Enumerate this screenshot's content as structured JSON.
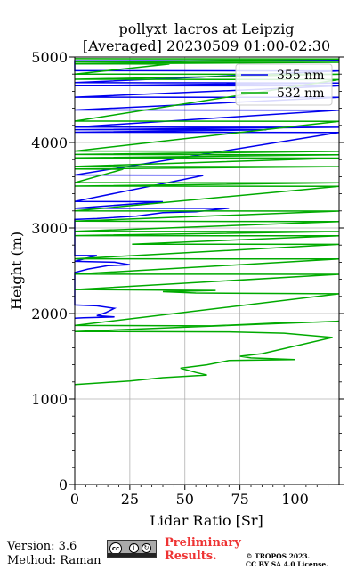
{
  "chart_data": {
    "type": "line",
    "title": "pollyxt_lacros at Leipzig",
    "subtitle": "[Averaged] 20230509 01:00-02:30",
    "xlabel": "Lidar Ratio [Sr]",
    "ylabel": "Height (m)",
    "xlim": [
      0,
      120
    ],
    "ylim": [
      0,
      5000
    ],
    "x_ticks": [
      0,
      25,
      50,
      75,
      100
    ],
    "y_ticks": [
      0,
      1000,
      2000,
      3000,
      4000,
      5000
    ],
    "grid": true,
    "legend_position": "top-right",
    "series": [
      {
        "name": "355 nm",
        "color": "#0000ee",
        "points": [
          [
            120,
            4960
          ],
          [
            0,
            4955
          ],
          [
            0,
            4840
          ],
          [
            120,
            4838
          ],
          [
            0,
            4700
          ],
          [
            120,
            4696
          ],
          [
            0,
            4665
          ],
          [
            120,
            4662
          ],
          [
            0,
            4530
          ],
          [
            120,
            4528
          ],
          [
            0,
            4380
          ],
          [
            120,
            4378
          ],
          [
            0,
            4180
          ],
          [
            120,
            4178
          ],
          [
            0,
            4150
          ],
          [
            87,
            4148
          ],
          [
            0,
            4120
          ],
          [
            120,
            4118
          ],
          [
            0,
            3620
          ],
          [
            58,
            3617
          ],
          [
            58,
            3613
          ],
          [
            0,
            3310
          ],
          [
            40,
            3307
          ],
          [
            0,
            3230
          ],
          [
            70,
            3232
          ],
          [
            55,
            3190
          ],
          [
            40,
            3180
          ],
          [
            28,
            3140
          ],
          [
            10,
            3110
          ],
          [
            0,
            3100
          ],
          [
            0,
            2680
          ],
          [
            10,
            2678
          ],
          [
            0,
            2610
          ],
          [
            18,
            2600
          ],
          [
            25,
            2570
          ],
          [
            15,
            2560
          ],
          [
            6,
            2520
          ],
          [
            0,
            2480
          ],
          [
            0,
            2100
          ],
          [
            10,
            2090
          ],
          [
            18,
            2060
          ],
          [
            14,
            2010
          ],
          [
            10,
            1975
          ],
          [
            18,
            1960
          ],
          [
            4,
            1950
          ],
          [
            0,
            1945
          ]
        ]
      },
      {
        "name": "532 nm",
        "color": "#00aa00",
        "points": [
          [
            0,
            4980
          ],
          [
            120,
            4976
          ],
          [
            0,
            4940
          ],
          [
            120,
            4938
          ],
          [
            0,
            4920
          ],
          [
            43,
            4918
          ],
          [
            0,
            4800
          ],
          [
            120,
            4798
          ],
          [
            0,
            4740
          ],
          [
            120,
            4735
          ],
          [
            0,
            4250
          ],
          [
            120,
            4248
          ],
          [
            0,
            3900
          ],
          [
            120,
            3897
          ],
          [
            0,
            3860
          ],
          [
            120,
            3856
          ],
          [
            0,
            3820
          ],
          [
            120,
            3818
          ],
          [
            0,
            3720
          ],
          [
            120,
            3718
          ],
          [
            0,
            3690
          ],
          [
            22,
            3688
          ],
          [
            0,
            3530
          ],
          [
            120,
            3528
          ],
          [
            0,
            3490
          ],
          [
            120,
            3488
          ],
          [
            0,
            3200
          ],
          [
            120,
            3198
          ],
          [
            0,
            3080
          ],
          [
            120,
            3075
          ],
          [
            0,
            2960
          ],
          [
            120,
            2958
          ],
          [
            0,
            2910
          ],
          [
            120,
            2908
          ],
          [
            26,
            2810
          ],
          [
            120,
            2808
          ],
          [
            0,
            2640
          ],
          [
            120,
            2638
          ],
          [
            0,
            2460
          ],
          [
            120,
            2458
          ],
          [
            0,
            2280
          ],
          [
            64,
            2270
          ],
          [
            40,
            2255
          ],
          [
            55,
            2240
          ],
          [
            120,
            2230
          ],
          [
            0,
            1860
          ],
          [
            62,
            1855
          ],
          [
            80,
            1875
          ],
          [
            92,
            1890
          ],
          [
            110,
            1900
          ],
          [
            120,
            1910
          ],
          [
            0,
            1790
          ],
          [
            70,
            1785
          ],
          [
            95,
            1770
          ],
          [
            117,
            1720
          ],
          [
            85,
            1530
          ],
          [
            75,
            1500
          ],
          [
            80,
            1480
          ],
          [
            100,
            1460
          ],
          [
            70,
            1450
          ],
          [
            60,
            1400
          ],
          [
            48,
            1360
          ],
          [
            55,
            1310
          ],
          [
            60,
            1280
          ],
          [
            40,
            1250
          ],
          [
            25,
            1210
          ],
          [
            0,
            1170
          ]
        ]
      }
    ]
  },
  "footer": {
    "version_line": "Version: 3.6",
    "method_line": "Method: Raman",
    "preliminary_line1": "Preliminary",
    "preliminary_line2": "Results.",
    "copyright_line1": "© TROPOS 2023.",
    "copyright_line2": "CC BY SA 4.0 License."
  }
}
